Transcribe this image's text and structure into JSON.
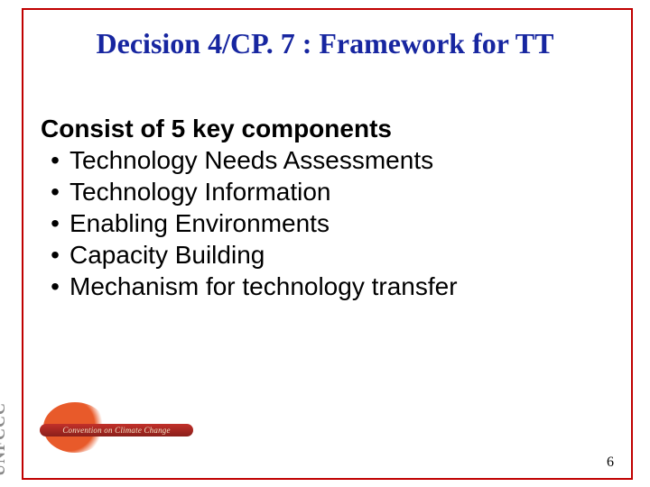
{
  "colors": {
    "border": "#c00000",
    "title": "#1726a0",
    "body_text": "#000000",
    "background": "#ffffff",
    "logo_sun": "#e85a2a",
    "logo_band": "#a8241e",
    "logo_text": "#8a8a8a"
  },
  "typography": {
    "title_family": "Times New Roman",
    "title_size_pt": 32,
    "title_weight": "bold",
    "body_family": "Arial",
    "body_size_pt": 28
  },
  "title": "Decision 4/CP. 7 : Framework for TT",
  "heading": "Consist of 5 key components",
  "bullets": [
    "Technology Needs Assessments",
    "Technology Information",
    "Enabling Environments",
    "Capacity Building",
    "Mechanism for technology transfer"
  ],
  "page_number": "6",
  "logo": {
    "vertical_text": "UNFCCC",
    "band_text": "Convention on Climate Change"
  }
}
